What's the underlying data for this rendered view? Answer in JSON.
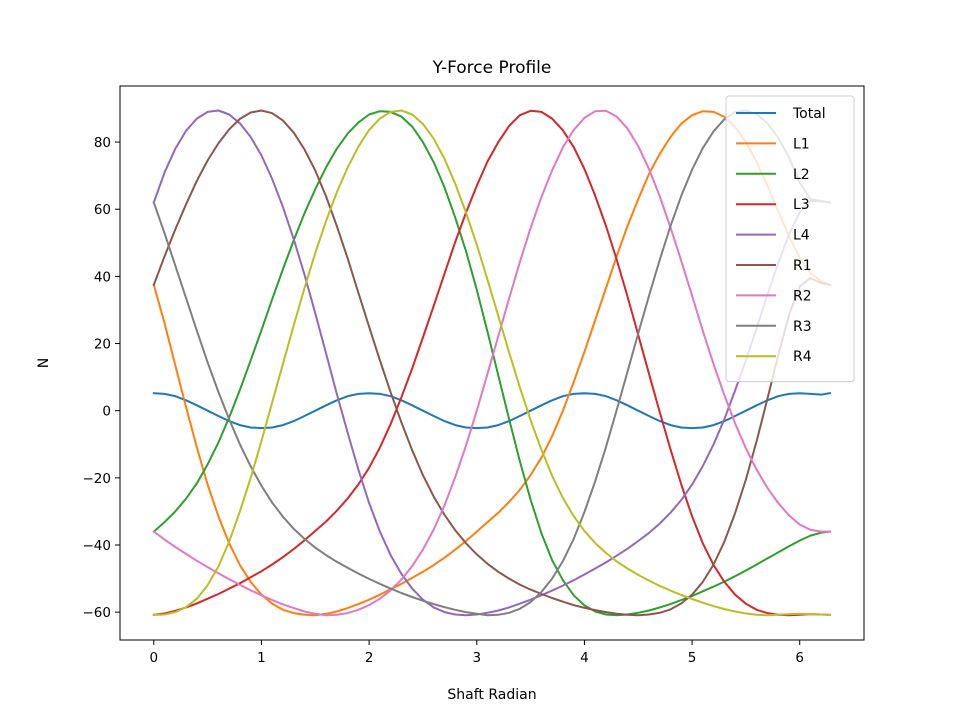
{
  "chart_data": {
    "type": "line",
    "title": "Y-Force Profile",
    "xlabel": "Shaft Radian",
    "ylabel": "N",
    "xlim": [
      -0.314,
      6.597
    ],
    "ylim": [
      -68.3,
      96.7
    ],
    "xticks": [
      0,
      1,
      2,
      3,
      4,
      5,
      6
    ],
    "yticks": [
      -60,
      -40,
      -20,
      0,
      20,
      40,
      60,
      80
    ],
    "xtick_labels": [
      "0",
      "1",
      "2",
      "3",
      "4",
      "5",
      "6"
    ],
    "ytick_labels": [
      "−60",
      "−40",
      "−20",
      "0",
      "20",
      "40",
      "60",
      "80"
    ],
    "grid": false,
    "legend_position": "upper right",
    "x": [
      0,
      0.1,
      0.2,
      0.3,
      0.4,
      0.5,
      0.6,
      0.7,
      0.8,
      0.9,
      1.0,
      1.1,
      1.2,
      1.3,
      1.4,
      1.5,
      1.6,
      1.7,
      1.8,
      1.9,
      2.0,
      2.1,
      2.2,
      2.3,
      2.4,
      2.5,
      2.6,
      2.7,
      2.8,
      2.9,
      3.0,
      3.1,
      3.2,
      3.3,
      3.4,
      3.5,
      3.6,
      3.7,
      3.8,
      3.9,
      4.0,
      4.1,
      4.2,
      4.3,
      4.4,
      4.5,
      4.6,
      4.7,
      4.8,
      4.9,
      5.0,
      5.1,
      5.2,
      5.3,
      5.4,
      5.5,
      5.6,
      5.7,
      5.8,
      5.9,
      6.0,
      6.1,
      6.2,
      6.28
    ],
    "series": [
      {
        "name": "Total",
        "color": "#1f77b4",
        "values": [
          5.2,
          5.0,
          4.3,
          3.1,
          1.6,
          0.0,
          -1.6,
          -3.1,
          -4.3,
          -5.0,
          -5.2,
          -5.0,
          -4.3,
          -3.1,
          -1.6,
          0.0,
          1.6,
          3.1,
          4.3,
          5.0,
          5.2,
          5.0,
          4.3,
          3.1,
          1.6,
          0.0,
          -1.6,
          -3.1,
          -4.3,
          -5.0,
          -5.2,
          -5.0,
          -4.3,
          -3.1,
          -1.6,
          0.0,
          1.6,
          3.1,
          4.3,
          5.0,
          5.2,
          5.0,
          4.3,
          3.1,
          1.6,
          0.0,
          -1.6,
          -3.1,
          -4.3,
          -5.0,
          -5.2,
          -5.0,
          -4.3,
          -3.1,
          -1.6,
          0.0,
          1.6,
          3.1,
          4.3,
          5.0,
          5.2,
          5.0,
          4.8,
          5.2
        ]
      },
      {
        "name": "L1",
        "color": "#ff7f0e",
        "values": [
          37.5,
          26.0,
          13.5,
          1.0,
          -11.0,
          -22.0,
          -31.5,
          -39.5,
          -46.0,
          -51.0,
          -54.8,
          -57.5,
          -59.3,
          -60.3,
          -60.8,
          -60.9,
          -60.5,
          -59.8,
          -58.8,
          -57.6,
          -56.3,
          -54.8,
          -53.2,
          -51.6,
          -49.8,
          -48.0,
          -46.0,
          -43.8,
          -41.4,
          -38.8,
          -36.0,
          -33.2,
          -30.4,
          -27.2,
          -23.6,
          -19.2,
          -14.0,
          -7.6,
          0.0,
          8.5,
          17.5,
          27.0,
          36.5,
          46.0,
          55.0,
          63.0,
          70.5,
          76.5,
          81.5,
          85.5,
          88.0,
          89.2,
          89.0,
          87.5,
          84.5,
          80.0,
          74.0,
          67.0,
          59.5,
          52.0,
          45.5,
          41.0,
          38.5,
          37.5
        ]
      },
      {
        "name": "L2",
        "color": "#2ca02c",
        "values": [
          -36.0,
          -33.2,
          -30.0,
          -26.2,
          -21.6,
          -16.0,
          -9.5,
          -2.0,
          6.2,
          15.0,
          24.0,
          33.2,
          42.2,
          50.8,
          58.8,
          66.0,
          72.5,
          78.0,
          82.5,
          85.8,
          88.2,
          89.2,
          89.0,
          87.6,
          84.6,
          80.0,
          74.0,
          66.5,
          57.5,
          47.5,
          36.0,
          23.5,
          10.5,
          -2.5,
          -15.0,
          -26.5,
          -36.5,
          -44.5,
          -50.5,
          -55.0,
          -58.0,
          -59.8,
          -60.7,
          -60.9,
          -60.7,
          -60.2,
          -59.5,
          -58.6,
          -57.6,
          -56.4,
          -55.2,
          -53.8,
          -52.4,
          -50.9,
          -49.3,
          -47.6,
          -45.8,
          -44.0,
          -42.2,
          -40.4,
          -38.7,
          -37.2,
          -36.3,
          -36.0
        ]
      },
      {
        "name": "L3",
        "color": "#d62728",
        "values": [
          -60.8,
          -60.4,
          -59.6,
          -58.6,
          -57.4,
          -56.0,
          -54.6,
          -53.0,
          -51.4,
          -49.6,
          -47.8,
          -45.8,
          -43.6,
          -41.2,
          -38.6,
          -35.8,
          -33.0,
          -29.8,
          -26.2,
          -22.0,
          -17.0,
          -11.0,
          -4.0,
          4.0,
          12.6,
          21.8,
          31.2,
          40.8,
          50.2,
          59.0,
          67.0,
          74.2,
          80.0,
          84.8,
          88.0,
          89.3,
          89.0,
          87.0,
          83.5,
          78.5,
          72.0,
          64.0,
          55.0,
          45.0,
          34.0,
          22.6,
          11.0,
          -0.5,
          -11.5,
          -22.0,
          -31.5,
          -39.5,
          -46.0,
          -51.0,
          -54.8,
          -57.5,
          -59.3,
          -60.3,
          -60.8,
          -60.9,
          -60.8,
          -60.6,
          -60.7,
          -60.8
        ]
      },
      {
        "name": "L4",
        "color": "#9467bd",
        "values": [
          62.0,
          71.0,
          78.0,
          83.4,
          87.0,
          89.0,
          89.4,
          88.2,
          85.6,
          81.5,
          76.0,
          69.0,
          60.6,
          51.0,
          40.5,
          29.0,
          17.0,
          5.0,
          -6.5,
          -17.5,
          -27.5,
          -36.0,
          -43.0,
          -48.6,
          -53.0,
          -56.3,
          -58.6,
          -60.0,
          -60.7,
          -60.9,
          -60.7,
          -60.2,
          -59.5,
          -58.6,
          -57.5,
          -56.3,
          -55.0,
          -53.6,
          -52.1,
          -50.5,
          -48.8,
          -47.0,
          -45.2,
          -43.2,
          -41.1,
          -38.8,
          -36.4,
          -33.6,
          -30.4,
          -26.6,
          -22.0,
          -16.5,
          -10.0,
          -2.5,
          6.0,
          15.0,
          24.6,
          34.5,
          44.0,
          52.5,
          59.0,
          62.5,
          62.3,
          62.0
        ]
      },
      {
        "name": "R1",
        "color": "#8c564b",
        "values": [
          37.5,
          46.0,
          54.0,
          61.5,
          68.5,
          74.5,
          79.6,
          83.8,
          86.9,
          88.8,
          89.4,
          88.6,
          86.4,
          82.8,
          77.8,
          71.5,
          63.8,
          55.0,
          45.4,
          35.2,
          25.0,
          15.0,
          5.5,
          -3.5,
          -11.8,
          -19.2,
          -25.6,
          -31.0,
          -35.6,
          -39.5,
          -42.8,
          -45.6,
          -48.0,
          -50.0,
          -51.8,
          -53.3,
          -54.6,
          -55.8,
          -56.9,
          -57.9,
          -58.7,
          -59.4,
          -60.0,
          -60.5,
          -60.8,
          -60.9,
          -60.7,
          -60.2,
          -59.2,
          -57.4,
          -54.8,
          -51.0,
          -45.8,
          -39.0,
          -30.5,
          -20.5,
          -9.0,
          3.5,
          16.5,
          28.5,
          37.0,
          39.5,
          38.0,
          37.5
        ]
      },
      {
        "name": "R2",
        "color": "#e377c2",
        "values": [
          -36.0,
          -38.4,
          -40.6,
          -42.7,
          -44.7,
          -46.6,
          -48.4,
          -50.2,
          -51.9,
          -53.5,
          -55.0,
          -56.4,
          -57.7,
          -58.8,
          -59.8,
          -60.5,
          -60.9,
          -60.8,
          -60.3,
          -59.3,
          -57.9,
          -56.0,
          -53.5,
          -50.3,
          -46.3,
          -41.4,
          -35.4,
          -28.2,
          -19.8,
          -10.4,
          0.0,
          11.0,
          22.2,
          33.4,
          44.2,
          54.4,
          63.6,
          71.6,
          78.4,
          83.6,
          87.2,
          89.2,
          89.3,
          87.6,
          84.0,
          78.8,
          72.0,
          63.8,
          54.6,
          44.6,
          34.2,
          23.8,
          13.8,
          4.6,
          -3.8,
          -11.2,
          -17.6,
          -23.0,
          -27.5,
          -31.2,
          -33.9,
          -35.5,
          -36.0,
          -36.0
        ]
      },
      {
        "name": "R3",
        "color": "#7f7f7f",
        "values": [
          62.0,
          52.8,
          43.2,
          33.5,
          23.8,
          14.4,
          5.6,
          -2.6,
          -10.0,
          -16.6,
          -22.4,
          -27.4,
          -31.6,
          -35.2,
          -38.2,
          -40.8,
          -43.0,
          -45.0,
          -46.8,
          -48.5,
          -50.1,
          -51.6,
          -53.0,
          -54.3,
          -55.5,
          -56.6,
          -57.6,
          -58.5,
          -59.3,
          -60.0,
          -60.5,
          -60.9,
          -60.8,
          -60.2,
          -59.0,
          -57.0,
          -54.0,
          -50.0,
          -44.8,
          -38.2,
          -30.2,
          -21.0,
          -10.8,
          0.2,
          11.6,
          23.0,
          34.2,
          45.0,
          55.0,
          64.0,
          71.8,
          78.2,
          83.2,
          86.8,
          88.9,
          89.4,
          88.3,
          85.6,
          81.3,
          75.4,
          68.0,
          63.0,
          62.5,
          62.0
        ]
      },
      {
        "name": "R4",
        "color": "#bcbd22",
        "values": [
          -60.8,
          -60.7,
          -60.0,
          -58.5,
          -56.0,
          -52.0,
          -46.4,
          -39.0,
          -30.0,
          -20.0,
          -9.0,
          2.5,
          14.0,
          25.5,
          36.5,
          47.0,
          56.5,
          65.0,
          72.4,
          78.6,
          83.6,
          87.0,
          89.0,
          89.4,
          88.2,
          85.4,
          81.0,
          75.0,
          67.6,
          59.0,
          49.4,
          39.0,
          28.2,
          17.4,
          7.0,
          -2.8,
          -11.6,
          -19.4,
          -26.0,
          -31.4,
          -35.8,
          -39.4,
          -42.4,
          -44.9,
          -47.0,
          -48.9,
          -50.6,
          -52.2,
          -53.6,
          -54.9,
          -56.1,
          -57.2,
          -58.2,
          -59.1,
          -59.8,
          -60.4,
          -60.8,
          -60.9,
          -60.8,
          -60.6,
          -60.5,
          -60.6,
          -60.7,
          -60.8
        ]
      }
    ]
  }
}
